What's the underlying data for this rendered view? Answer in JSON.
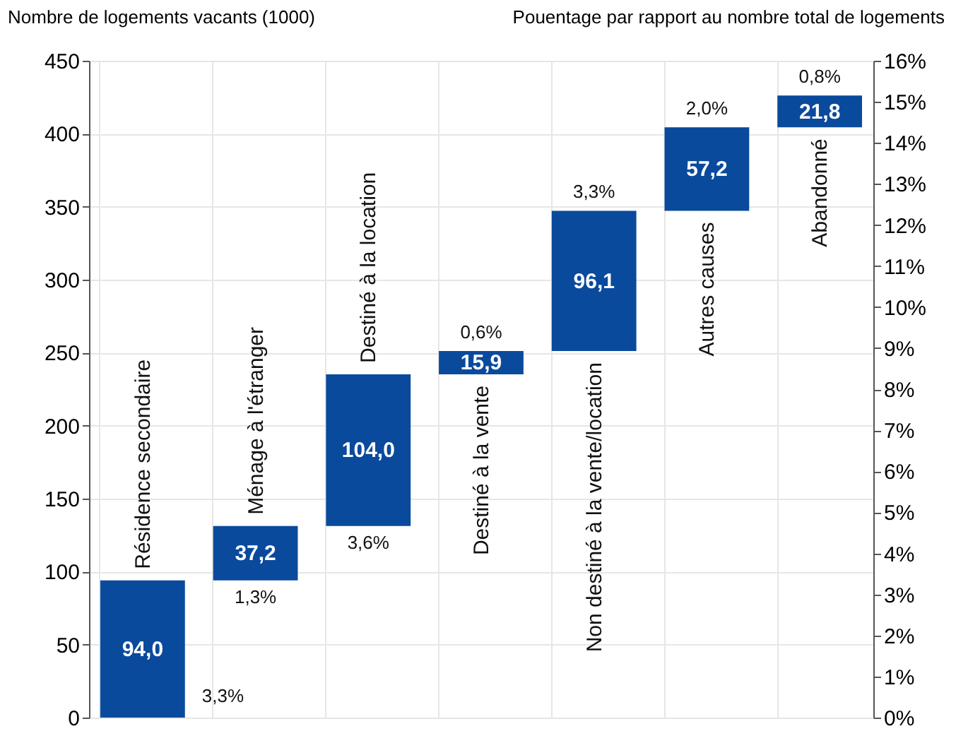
{
  "chart_data": {
    "type": "bar",
    "ylabel": "Nombre de logements vacants (1000)",
    "y2label": "Pouentage par rapport au nombre total de logements",
    "categories": [
      "Résidence secondaire",
      "Ménage à l'étranger",
      "Destiné à la location",
      "Destiné à la vente",
      "Non destiné à la vente/location",
      "Autres causes",
      "Abandonné"
    ],
    "base": [
      0,
      94.0,
      131.2,
      235.2,
      251.1,
      347.2,
      404.4
    ],
    "values": [
      94.0,
      37.2,
      104.0,
      15.9,
      96.1,
      57.2,
      21.8
    ],
    "value_labels": [
      "94,0",
      "37,2",
      "104,0",
      "15,9",
      "96,1",
      "57,2",
      "21,8"
    ],
    "color": "#0a4a9c",
    "ylim": [
      0,
      450
    ],
    "yticks": [
      0,
      50,
      100,
      150,
      200,
      250,
      300,
      350,
      400,
      450
    ],
    "y2lim": [
      0,
      16
    ],
    "y2ticks": [
      {
        "value": 0,
        "label": "0%"
      },
      {
        "value": 1,
        "label": "1%"
      },
      {
        "value": 2,
        "label": "2%"
      },
      {
        "value": 3,
        "label": "3%"
      },
      {
        "value": 4,
        "label": "4%"
      },
      {
        "value": 5,
        "label": "5%"
      },
      {
        "value": 6,
        "label": "6%"
      },
      {
        "value": 7,
        "label": "7%"
      },
      {
        "value": 8,
        "label": "8%"
      },
      {
        "value": 9,
        "label": "9%"
      },
      {
        "value": 10,
        "label": "10%"
      },
      {
        "value": 11,
        "label": "11%"
      },
      {
        "value": 12,
        "label": "12%"
      },
      {
        "value": 13,
        "label": "13%"
      },
      {
        "value": 14,
        "label": "14%"
      },
      {
        "value": 15,
        "label": "15%"
      },
      {
        "value": 16,
        "label": "16%"
      }
    ],
    "annotations": [
      "3,3%",
      "1,3%",
      "3,6%",
      "0,6%",
      "3,3%",
      "2,0%",
      "0,8%"
    ],
    "grid": true
  }
}
